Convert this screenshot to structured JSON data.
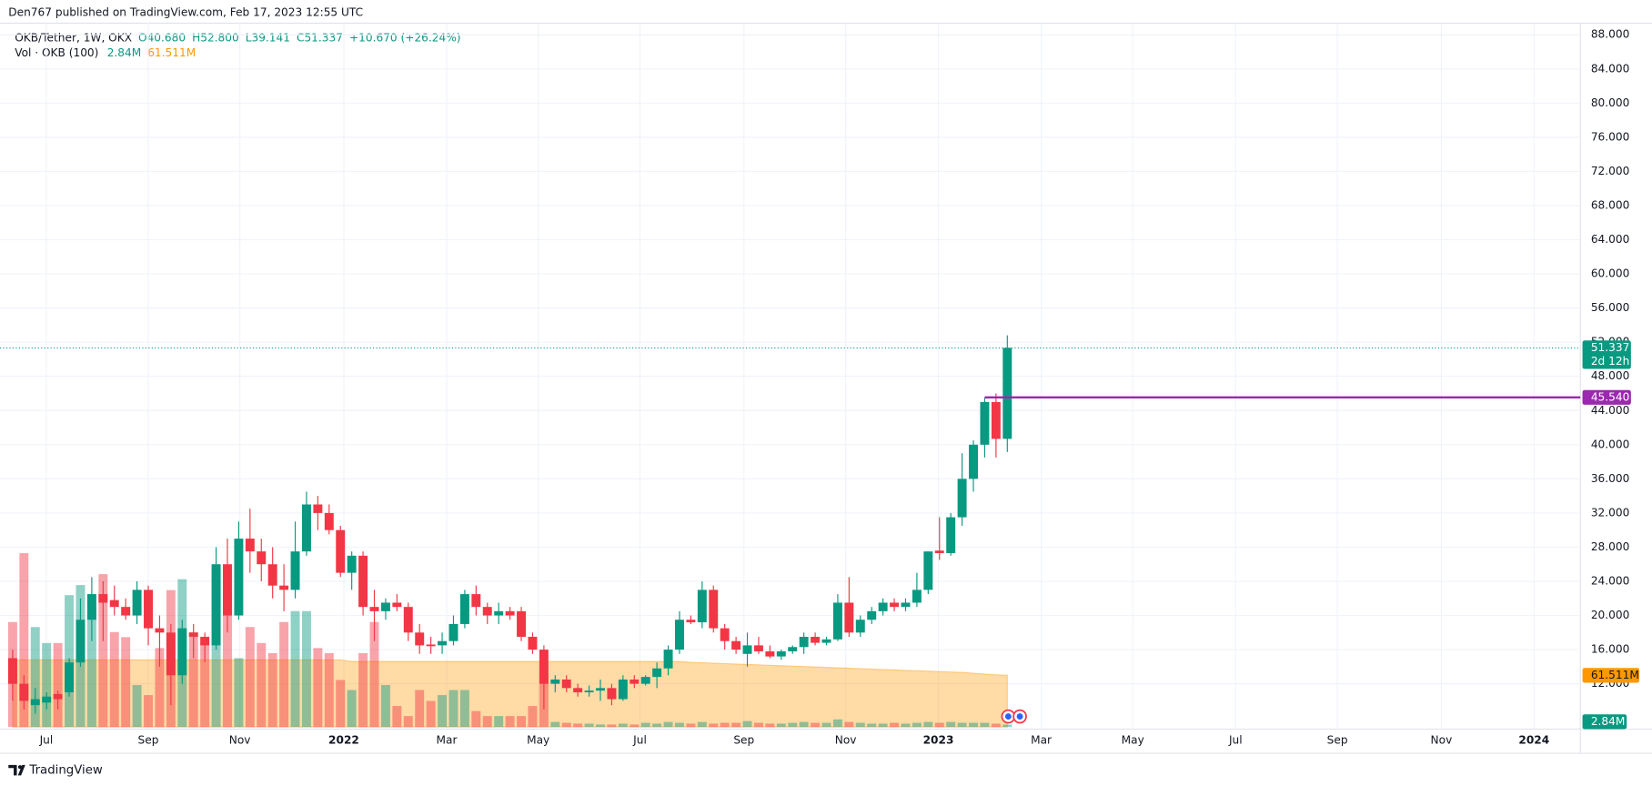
{
  "header": {
    "published": "Den767 published on TradingView.com, Feb 17, 2023 12:55 UTC",
    "symbol": "OKB/Tether, 1W, OKX",
    "ohlc": [
      "O40.680",
      "H52.800",
      "L39.141",
      "C51.337",
      "+10.670 (+26.24%)"
    ],
    "volume_title": "Vol · OKB (100)"
  },
  "footer": {
    "brand": "TradingView"
  },
  "chart_data": {
    "type": "candlestick",
    "open": [
      15,
      12,
      9.5,
      9.8,
      10.8,
      11,
      14.5,
      19.5,
      22.5,
      21.8,
      21,
      20,
      23,
      18.5,
      18,
      13,
      18,
      17.5,
      16.5,
      26,
      20,
      29,
      27.5,
      26,
      23.5,
      23,
      27.5,
      33,
      32,
      30,
      25,
      27,
      21,
      20.5,
      21.5,
      21,
      18,
      16.6,
      16.5,
      17,
      19,
      22.5,
      21,
      20,
      20.5,
      20.5,
      17.5,
      16,
      12,
      12.5,
      11.5,
      11,
      11.2,
      11.5,
      10.2,
      12.5,
      12,
      12.8,
      13.8,
      16,
      19.5,
      19.2,
      23,
      18.5,
      17,
      15.5,
      16.5,
      15.8,
      15.2,
      15.8,
      16.3,
      17.5,
      16.8,
      17.2,
      21.5,
      18,
      19.5,
      20.5,
      21.5,
      21,
      21.5,
      23,
      27.6,
      27.3,
      31.5,
      36,
      40,
      45,
      40.68
    ],
    "high": [
      16,
      13,
      11.5,
      11,
      11.2,
      15,
      22,
      24.5,
      24,
      23.5,
      22,
      24,
      23.5,
      20,
      19,
      19.5,
      19,
      18,
      28,
      29,
      31,
      32.5,
      29,
      28,
      26,
      31,
      34.5,
      34,
      33,
      30.5,
      27.5,
      27.5,
      23,
      22,
      22.5,
      21.5,
      19,
      17.5,
      18,
      20,
      23,
      23.5,
      21.5,
      21.5,
      21,
      21,
      18,
      16.5,
      13,
      13,
      12,
      11.8,
      12.5,
      12,
      13,
      13,
      13,
      14.5,
      16.5,
      20.5,
      20,
      24,
      23.5,
      19,
      17.5,
      18,
      17.5,
      16.5,
      16,
      16.5,
      18,
      18,
      17.5,
      22.5,
      24.5,
      20,
      21,
      22,
      22,
      22,
      25,
      27.5,
      31.5,
      32,
      39,
      40.5,
      45.5,
      46,
      52.8
    ],
    "low": [
      10,
      9,
      8.5,
      9,
      9,
      10.5,
      14,
      17,
      17,
      20,
      19.5,
      19,
      16.5,
      14,
      9.5,
      12,
      15,
      14.5,
      16,
      18,
      19.5,
      25,
      24,
      22,
      20.5,
      22,
      27,
      30,
      29.5,
      24.5,
      23,
      20,
      17,
      19.5,
      20.5,
      17,
      15.5,
      15.5,
      15.5,
      16.5,
      18.5,
      20,
      19,
      19,
      19.5,
      17,
      15.5,
      9,
      11,
      11,
      10.5,
      10.5,
      10,
      9.5,
      10,
      11.5,
      11.8,
      11.5,
      13,
      15.5,
      19,
      18.5,
      18,
      16,
      15.5,
      14,
      15.5,
      15,
      14.8,
      15.5,
      15.5,
      16.5,
      16.5,
      17,
      17.5,
      17.5,
      19,
      20,
      20.5,
      20.5,
      21,
      22.5,
      26.5,
      27,
      30.5,
      34.5,
      38.5,
      38.5,
      39.141
    ],
    "close": [
      12,
      10,
      10.2,
      10.5,
      10.2,
      14.5,
      19.5,
      22.5,
      21.5,
      21,
      20,
      23,
      18.5,
      18,
      13,
      18.5,
      17.5,
      16.5,
      26,
      20,
      29,
      27.5,
      26,
      23.5,
      23,
      27.5,
      33,
      32,
      30,
      25,
      27,
      21,
      20.5,
      21.5,
      21,
      18,
      16.5,
      16.4,
      17,
      19,
      22.5,
      21,
      20,
      20.5,
      20,
      17.5,
      16,
      12,
      12.5,
      11.5,
      11,
      11.2,
      11.5,
      10.2,
      12.5,
      12,
      12.8,
      13.8,
      16,
      19.5,
      19.2,
      23,
      18.5,
      17,
      16,
      16.5,
      15.8,
      15.2,
      15.8,
      16.3,
      17.5,
      16.8,
      17.2,
      21.5,
      18,
      19.5,
      20.5,
      21.5,
      21,
      21.5,
      23,
      27.5,
      27.3,
      31.5,
      36,
      40,
      45,
      40.68,
      51.337
    ],
    "volume": [
      125,
      207,
      119,
      100,
      100,
      157,
      169,
      144,
      182,
      113,
      107,
      50,
      38,
      94,
      163,
      176,
      113,
      100,
      182,
      163,
      82,
      119,
      100,
      88,
      125,
      138,
      138,
      94,
      88,
      56,
      44,
      88,
      125,
      50,
      25,
      13,
      44,
      31,
      38,
      44,
      44,
      19,
      13,
      13,
      13,
      13,
      25,
      63,
      6,
      5,
      4,
      4,
      3,
      3,
      4,
      3,
      5,
      4,
      6,
      5,
      4,
      6,
      4,
      5,
      5,
      7,
      5,
      4,
      4,
      5,
      6,
      5,
      5,
      9,
      6,
      5,
      4,
      4,
      5,
      4,
      5,
      6,
      5,
      6,
      5,
      5,
      5,
      4,
      2.84
    ],
    "volume_ma": [
      80,
      80,
      80,
      80,
      80,
      80,
      80,
      80,
      80,
      80,
      80,
      80,
      80,
      80,
      80,
      80,
      80,
      80,
      80,
      80,
      80,
      80,
      80,
      80,
      80,
      80,
      80,
      80,
      80,
      80,
      78,
      78,
      78,
      78,
      78,
      78,
      78,
      78,
      78,
      78,
      78,
      78,
      78,
      78,
      78,
      78,
      78,
      78,
      78,
      78,
      78,
      78,
      78,
      78,
      78,
      78,
      78,
      78,
      78,
      78,
      77,
      76.5,
      76,
      75.5,
      75,
      74.5,
      74,
      73.5,
      73,
      72.5,
      72,
      71.5,
      71,
      70.5,
      70,
      69.5,
      69,
      68.5,
      68,
      67.5,
      67,
      66.5,
      66,
      65.5,
      65,
      64,
      63,
      62.2,
      61.511
    ],
    "colors": {
      "up": "#089981",
      "down": "#f23645",
      "volume_ma": "#ff9800",
      "level": "#9c27b0"
    },
    "ylim": [
      6.94,
      89.36
    ],
    "yticks": [
      {
        "value": 12,
        "label": "12.000"
      },
      {
        "value": 16,
        "label": "16.000"
      },
      {
        "value": 20,
        "label": "20.000"
      },
      {
        "value": 24,
        "label": "24.000"
      },
      {
        "value": 28,
        "label": "28.000"
      },
      {
        "value": 32,
        "label": "32.000"
      },
      {
        "value": 36,
        "label": "36.000"
      },
      {
        "value": 40,
        "label": "40.000"
      },
      {
        "value": 44,
        "label": "44.000"
      },
      {
        "value": 48,
        "label": "48.000"
      },
      {
        "value": 52,
        "label": "52.000"
      },
      {
        "value": 56,
        "label": "56.000"
      },
      {
        "value": 60,
        "label": "60.000"
      },
      {
        "value": 64,
        "label": "64.000"
      },
      {
        "value": 68,
        "label": "68.000"
      },
      {
        "value": 72,
        "label": "72.000"
      },
      {
        "value": 76,
        "label": "76.000"
      },
      {
        "value": 80,
        "label": "80.000"
      },
      {
        "value": 84,
        "label": "84.000"
      },
      {
        "value": 88,
        "label": "88.000"
      }
    ],
    "xlim": [
      -1.12,
      138.7
    ],
    "xticks": [
      {
        "value": 2.98,
        "label": "Jul"
      },
      {
        "value": 12.0,
        "label": "Sep"
      },
      {
        "value": 20.1,
        "label": "Nov"
      },
      {
        "value": 29.3,
        "label": "2022"
      },
      {
        "value": 38.4,
        "label": "Mar"
      },
      {
        "value": 46.5,
        "label": "May"
      },
      {
        "value": 55.5,
        "label": "Jul"
      },
      {
        "value": 64.7,
        "label": "Sep"
      },
      {
        "value": 73.7,
        "label": "Nov"
      },
      {
        "value": 81.9,
        "label": "2023"
      },
      {
        "value": 91.0,
        "label": "Mar"
      },
      {
        "value": 99.1,
        "label": "May"
      },
      {
        "value": 108.2,
        "label": "Jul"
      },
      {
        "value": 117.2,
        "label": "Sep"
      },
      {
        "value": 126.4,
        "label": "Nov"
      },
      {
        "value": 134.6,
        "label": "2024"
      }
    ],
    "last_price": 51.337,
    "countdown": "2d 12h",
    "level": {
      "value": 45.54,
      "label": "45.540",
      "start": 86
    },
    "volume_ma_label": {
      "value": 61.511,
      "label": "61.511M"
    },
    "volume_label": {
      "value": 2.84,
      "label": "2.84M"
    },
    "grid": true
  }
}
